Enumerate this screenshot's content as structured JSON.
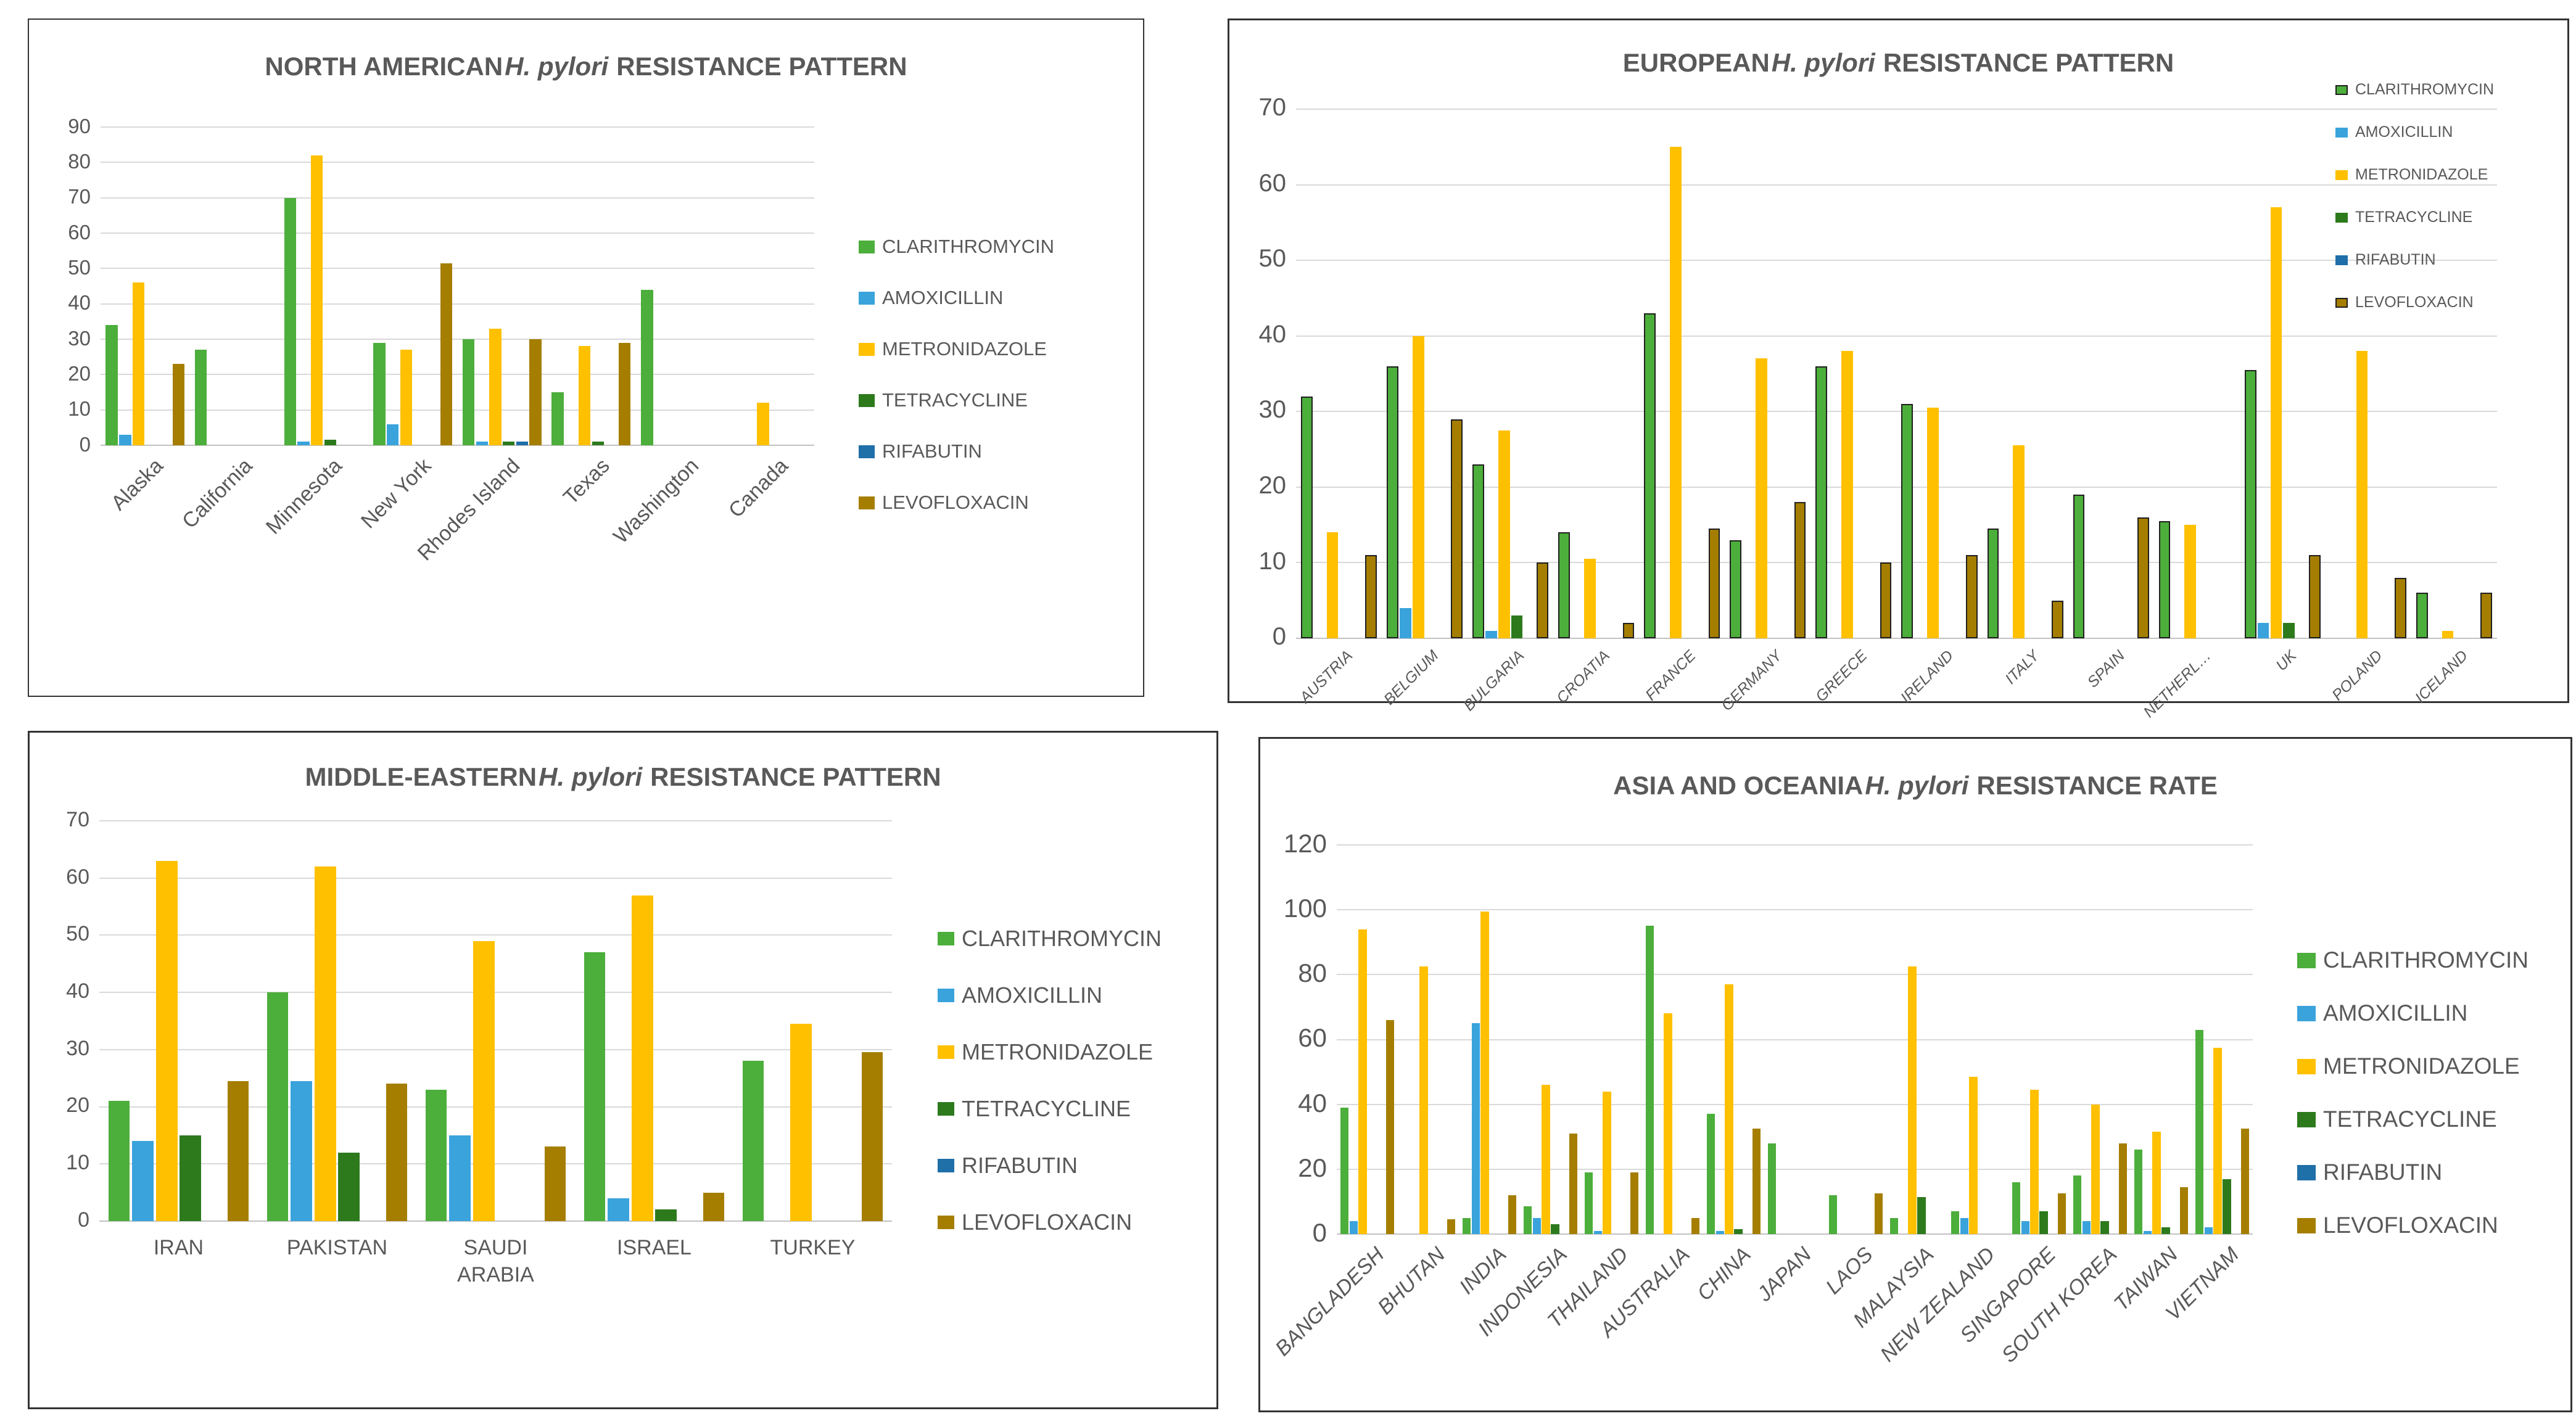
{
  "page": {
    "background": "#FFFFFF",
    "text_color": "#595959",
    "gridline_color": "#D9D9D9"
  },
  "antibiotics": [
    {
      "name": "CLARITHROMYCIN",
      "color": "#4CAE3B"
    },
    {
      "name": "AMOXICILLIN",
      "color": "#3AA3DC"
    },
    {
      "name": "METRONIDAZOLE",
      "color": "#FFC000"
    },
    {
      "name": "TETRACYCLINE",
      "color": "#2D7A1D"
    },
    {
      "name": "RIFABUTIN",
      "color": "#1F6FA8"
    },
    {
      "name": "LEVOFLOXACIN",
      "color": "#A57E00"
    }
  ],
  "chart_data": [
    {
      "id": "north-american",
      "type": "bar",
      "title": {
        "prefix": "NORTH AMERICAN",
        "italic": "H. pylori",
        "suffix": "RESISTANCE PATTERN"
      },
      "ylim": [
        0,
        90
      ],
      "ystep": 10,
      "grid": true,
      "legend_position": "right",
      "categories": [
        "Alaska",
        "California",
        "Minnesota",
        "New York",
        "Rhodes Island",
        "Texas",
        "Washington",
        "Canada"
      ],
      "series": [
        {
          "name": "CLARITHROMYCIN",
          "values": [
            34,
            27,
            70,
            29,
            30,
            15,
            44,
            null
          ]
        },
        {
          "name": "AMOXICILLIN",
          "values": [
            3,
            null,
            1,
            6,
            1,
            null,
            null,
            null
          ]
        },
        {
          "name": "METRONIDAZOLE",
          "values": [
            46,
            null,
            82,
            27,
            33,
            28,
            null,
            12
          ]
        },
        {
          "name": "TETRACYCLINE",
          "values": [
            null,
            null,
            1.5,
            null,
            1,
            1,
            null,
            null
          ]
        },
        {
          "name": "RIFABUTIN",
          "values": [
            null,
            null,
            null,
            null,
            1,
            null,
            null,
            null
          ]
        },
        {
          "name": "LEVOFLOXACIN",
          "values": [
            23,
            null,
            null,
            51.5,
            30,
            29,
            null,
            null
          ]
        }
      ]
    },
    {
      "id": "european",
      "type": "bar",
      "title": {
        "prefix": "EUROPEAN",
        "italic": "H. pylori",
        "suffix": "RESISTANCE PATTERN"
      },
      "ylim": [
        0,
        70
      ],
      "ystep": 10,
      "grid": true,
      "legend_position": "top-right",
      "categories": [
        "AUSTRIA",
        "BELGIUM",
        "BULGARIA",
        "CROATIA",
        "FRANCE",
        "GERMANY",
        "GREECE",
        "IRELAND",
        "ITALY",
        "SPAIN",
        "NETHERL…",
        "UK",
        "POLAND",
        "ICELAND"
      ],
      "series": [
        {
          "name": "CLARITHROMYCIN",
          "values": [
            32,
            36,
            23,
            14,
            43,
            13,
            36,
            31,
            14.5,
            19,
            15.5,
            35.5,
            null,
            6
          ]
        },
        {
          "name": "AMOXICILLIN",
          "values": [
            null,
            4,
            1,
            null,
            null,
            null,
            null,
            null,
            null,
            null,
            null,
            2,
            null,
            null
          ]
        },
        {
          "name": "METRONIDAZOLE",
          "values": [
            14,
            40,
            27.5,
            10.5,
            65,
            37,
            38,
            30.5,
            25.5,
            null,
            15,
            57,
            38,
            1
          ]
        },
        {
          "name": "TETRACYCLINE",
          "values": [
            null,
            null,
            3,
            null,
            null,
            null,
            null,
            null,
            null,
            null,
            null,
            2,
            null,
            null
          ]
        },
        {
          "name": "RIFABUTIN",
          "values": [
            null,
            null,
            null,
            null,
            null,
            null,
            null,
            null,
            null,
            null,
            null,
            null,
            null,
            null
          ]
        },
        {
          "name": "LEVOFLOXACIN",
          "values": [
            11,
            29,
            10,
            2,
            14.5,
            18,
            10,
            11,
            5,
            16,
            null,
            11,
            8,
            6
          ]
        }
      ]
    },
    {
      "id": "middle-eastern",
      "type": "bar",
      "title": {
        "prefix": "MIDDLE-EASTERN",
        "italic": "H. pylori",
        "suffix": "RESISTANCE PATTERN"
      },
      "ylim": [
        0,
        70
      ],
      "ystep": 10,
      "grid": true,
      "legend_position": "right",
      "categories": [
        "IRAN",
        "PAKISTAN",
        "SAUDI ARABIA",
        "ISRAEL",
        "TURKEY"
      ],
      "series": [
        {
          "name": "CLARITHROMYCIN",
          "values": [
            21,
            40,
            23,
            47,
            28
          ]
        },
        {
          "name": "AMOXICILLIN",
          "values": [
            14,
            24.5,
            15,
            4,
            null
          ]
        },
        {
          "name": "METRONIDAZOLE",
          "values": [
            63,
            62,
            49,
            57,
            34.5
          ]
        },
        {
          "name": "TETRACYCLINE",
          "values": [
            15,
            12,
            null,
            2,
            null
          ]
        },
        {
          "name": "RIFABUTIN",
          "values": [
            null,
            null,
            null,
            null,
            null
          ]
        },
        {
          "name": "LEVOFLOXACIN",
          "values": [
            24.5,
            24,
            13,
            5,
            29.5
          ]
        }
      ]
    },
    {
      "id": "asia-oceania",
      "type": "bar",
      "title": {
        "prefix": "ASIA AND OCEANIA",
        "italic": "H. pylori",
        "suffix": "RESISTANCE RATE"
      },
      "ylim": [
        0,
        120
      ],
      "ystep": 20,
      "grid": true,
      "legend_position": "right",
      "categories": [
        "BANGLADESH",
        "BHUTAN",
        "INDIA",
        "INDONESIA",
        "THAILAND",
        "AUSTRALIA",
        "CHINA",
        "JAPAN",
        "LAOS",
        "MALAYSIA",
        "NEW ZEALAND",
        "SINGAPORE",
        "SOUTH KOREA",
        "TAIWAN",
        "VIETNAM"
      ],
      "series": [
        {
          "name": "CLARITHROMYCIN",
          "values": [
            39,
            null,
            5,
            8.5,
            19,
            95,
            37,
            28,
            12,
            5,
            7,
            16,
            18,
            26,
            63
          ]
        },
        {
          "name": "AMOXICILLIN",
          "values": [
            4,
            null,
            65,
            5,
            1,
            null,
            1,
            null,
            null,
            null,
            5,
            4,
            4,
            1,
            2
          ]
        },
        {
          "name": "METRONIDAZOLE",
          "values": [
            94,
            82.5,
            99.5,
            46,
            44,
            68,
            77,
            null,
            null,
            82.5,
            48.5,
            44.5,
            40,
            31.5,
            57.5
          ]
        },
        {
          "name": "TETRACYCLINE",
          "values": [
            null,
            null,
            null,
            3,
            null,
            null,
            1.5,
            null,
            null,
            11.5,
            null,
            7,
            4,
            2,
            17
          ]
        },
        {
          "name": "RIFABUTIN",
          "values": [
            null,
            null,
            null,
            null,
            null,
            null,
            null,
            null,
            null,
            null,
            null,
            null,
            null,
            null,
            null
          ]
        },
        {
          "name": "LEVOFLOXACIN",
          "values": [
            66,
            4.5,
            12,
            31,
            19,
            5,
            32.5,
            null,
            12.5,
            null,
            null,
            12.5,
            28,
            14.5,
            32.5
          ]
        }
      ]
    }
  ]
}
